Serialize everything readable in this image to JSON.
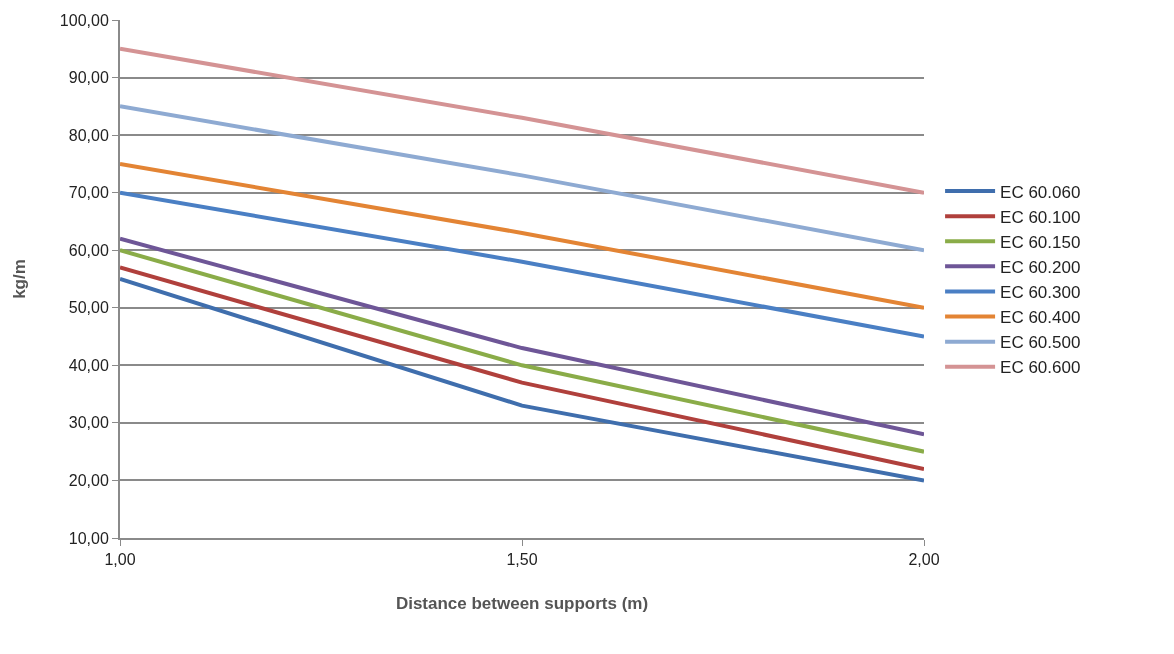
{
  "chart_data": {
    "type": "line",
    "xlabel": "Distance between supports (m)",
    "ylabel": "kg/m",
    "x": [
      1.0,
      1.5,
      2.0
    ],
    "xlim": [
      1.0,
      2.0
    ],
    "xticks": [
      {
        "value": 1.0,
        "label": "1,00"
      },
      {
        "value": 1.5,
        "label": "1,50"
      },
      {
        "value": 2.0,
        "label": "2,00"
      }
    ],
    "ylim": [
      10,
      100
    ],
    "yticks": [
      {
        "value": 10,
        "label": "10,00"
      },
      {
        "value": 20,
        "label": "20,00"
      },
      {
        "value": 30,
        "label": "30,00"
      },
      {
        "value": 40,
        "label": "40,00"
      },
      {
        "value": 50,
        "label": "50,00"
      },
      {
        "value": 60,
        "label": "60,00"
      },
      {
        "value": 70,
        "label": "70,00"
      },
      {
        "value": 80,
        "label": "80,00"
      },
      {
        "value": 90,
        "label": "90,00"
      },
      {
        "value": 100,
        "label": "100,00"
      }
    ],
    "grid": "y",
    "legend": "right",
    "marker": "none",
    "line_style": "solid",
    "series": [
      {
        "name": "EC 60.060",
        "color": "#3f6ead",
        "values": [
          55,
          33,
          20
        ]
      },
      {
        "name": "EC 60.100",
        "color": "#b0403c",
        "values": [
          57,
          37,
          22
        ]
      },
      {
        "name": "EC 60.150",
        "color": "#8aac48",
        "values": [
          60,
          40,
          25
        ]
      },
      {
        "name": "EC 60.200",
        "color": "#6e5697",
        "values": [
          62,
          43,
          28
        ]
      },
      {
        "name": "EC 60.300",
        "color": "#4a7fc4",
        "values": [
          70,
          58,
          45
        ]
      },
      {
        "name": "EC 60.400",
        "color": "#e38434",
        "values": [
          75,
          63,
          50
        ]
      },
      {
        "name": "EC 60.500",
        "color": "#8eaad2",
        "values": [
          85,
          73,
          60
        ]
      },
      {
        "name": "EC 60.600",
        "color": "#d49394",
        "values": [
          95,
          83,
          70
        ]
      }
    ]
  }
}
